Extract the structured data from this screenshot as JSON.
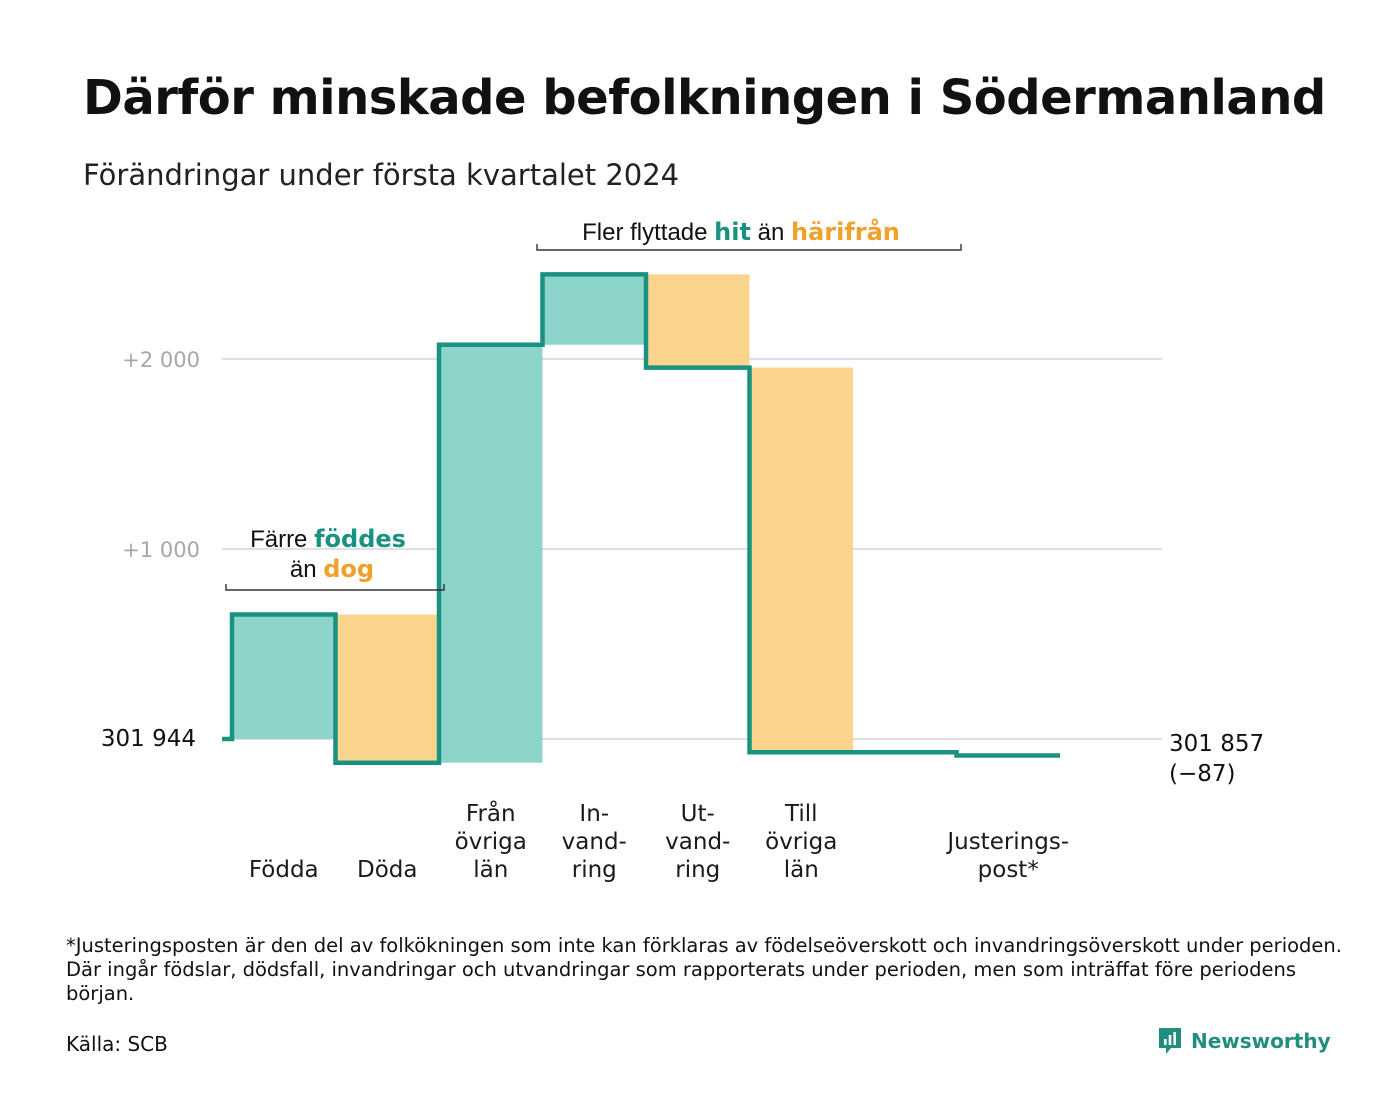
{
  "header": {
    "title": "Därför minskade befolkningen i Södermanland",
    "subtitle": "Förändringar under första kvartalet 2024"
  },
  "chart_data": {
    "type": "waterfall",
    "start": {
      "value": 301944,
      "label": "301   944"
    },
    "end": {
      "value": 301857,
      "label_line1": "301 857",
      "label_line2": "(−87)"
    },
    "y_ticks": [
      {
        "offset": 2000,
        "label": "+2   000"
      },
      {
        "offset": 1000,
        "label": "+1   000"
      }
    ],
    "steps": [
      {
        "name": "Födda",
        "label_lines": [
          "Födda"
        ],
        "delta": 655,
        "kind": "in"
      },
      {
        "name": "Döda",
        "label_lines": [
          "Döda"
        ],
        "delta": -780,
        "kind": "out"
      },
      {
        "name": "Från övriga län",
        "label_lines": [
          "Från",
          "övriga",
          "län"
        ],
        "delta": 2200,
        "kind": "in"
      },
      {
        "name": "Invandring",
        "label_lines": [
          "In-",
          "vand-",
          "ring"
        ],
        "delta": 370,
        "kind": "in"
      },
      {
        "name": "Utvandring",
        "label_lines": [
          "Ut-",
          "vand-",
          "ring"
        ],
        "delta": -490,
        "kind": "out"
      },
      {
        "name": "Till övriga län",
        "label_lines": [
          "Till",
          "övriga",
          "län"
        ],
        "delta": -2025,
        "kind": "out"
      },
      {
        "name": "",
        "label_lines": [],
        "delta": 0,
        "kind": "none"
      },
      {
        "name": "Justeringspost*",
        "label_lines": [
          "Justerings-",
          "post*"
        ],
        "delta": -17,
        "kind": "adjust"
      }
    ],
    "annotations": [
      {
        "groups": [
          0,
          1
        ],
        "line1": [
          "Färre ",
          "föddes"
        ],
        "line2": [
          "än ",
          "dog"
        ]
      },
      {
        "groups": [
          2,
          5
        ],
        "line1": [
          "Fler flyttade ",
          "hit",
          " än ",
          "härifrån"
        ]
      }
    ],
    "colors": {
      "in_fill": "#8dd5cb",
      "out_fill": "#fad48c",
      "step_line": "#1a9282",
      "grid": "#e0e0e4",
      "teal_text": "#1a9282",
      "orange_text": "#f0a12a"
    }
  },
  "footnote": "*Justeringsposten är den del av folkökningen som inte kan förklaras av födelseöverskott och invandringsöverskott under perioden. Där ingår födslar, dödsfall, invandringar och utvandringar som rapporterats under perioden, men som inträffat före periodens början.",
  "source": "Källa: SCB",
  "brand": {
    "name": "Newsworthy",
    "icon": "newsworthy-logo-icon",
    "color": "#1f8e7f"
  }
}
